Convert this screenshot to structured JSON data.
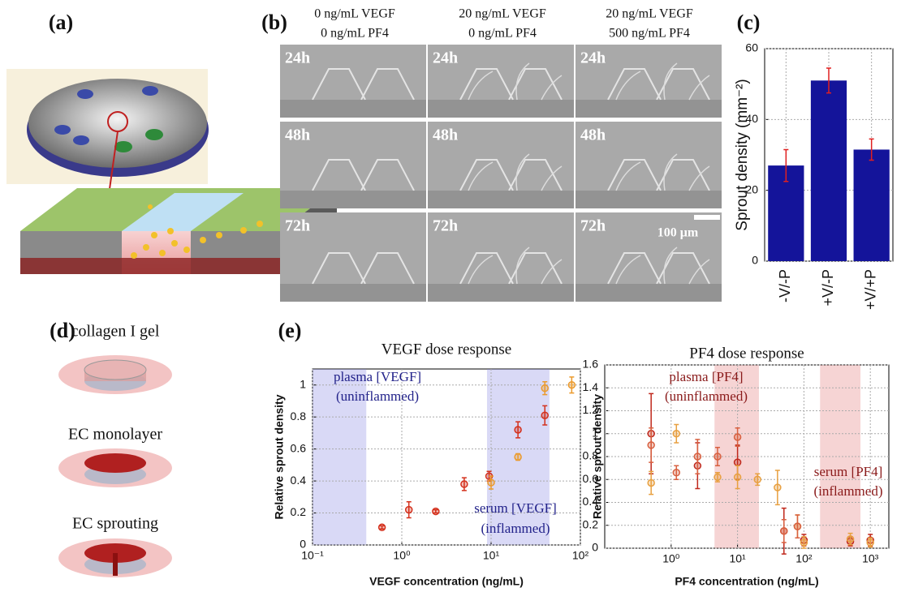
{
  "panels": {
    "a": "(a)",
    "b": "(b)",
    "c": "(c)",
    "d": "(d)",
    "e": "(e)"
  },
  "micrographs": {
    "columns": [
      {
        "vegf": "0 ng/mL VEGF",
        "pf4": "0 ng/mL PF4"
      },
      {
        "vegf": "20 ng/mL VEGF",
        "pf4": "0 ng/mL PF4"
      },
      {
        "vegf": "20 ng/mL VEGF",
        "pf4": "500 ng/mL PF4"
      }
    ],
    "times": [
      "24h",
      "48h",
      "72h"
    ],
    "scale_bar": "100 μm"
  },
  "diagram": {
    "steps": [
      "collagen I gel",
      "EC monolayer",
      "EC sprouting"
    ]
  },
  "chart_data": [
    {
      "type": "bar",
      "ylabel": "Sprout density (mm⁻²)",
      "categories": [
        "-V/-P",
        "+V/-P",
        "+V/+P"
      ],
      "values": [
        27,
        51,
        31.5
      ],
      "errors": [
        4.5,
        3.5,
        3
      ],
      "color": "#14149a",
      "error_color": "#e02020",
      "ylim": [
        0,
        60
      ],
      "yticks": [
        0,
        20,
        40,
        60
      ],
      "grid": true
    },
    {
      "type": "scatter",
      "title": "VEGF dose response",
      "xlabel": "VEGF concentration (ng/mL)",
      "ylabel": "Relative sprout density",
      "xscale": "log",
      "xlim": [
        0.1,
        100
      ],
      "xticks": [
        {
          "value": 0.1,
          "label": "10⁻¹"
        },
        {
          "value": 1,
          "label": "10⁰"
        },
        {
          "value": 10,
          "label": "10¹"
        },
        {
          "value": 100,
          "label": "10²"
        }
      ],
      "ylim": [
        0,
        1.1
      ],
      "yticks": [
        0,
        0.2,
        0.4,
        0.6,
        0.8,
        1
      ],
      "grid": true,
      "bands": [
        {
          "x": [
            0.1,
            0.4
          ],
          "color": "#8080e0"
        },
        {
          "x": [
            9,
            45
          ],
          "color": "#8080e0"
        }
      ],
      "annotations": [
        "plasma [VEGF]",
        "(uninflammed)",
        "serum [VEGF]",
        "(inflammed)"
      ],
      "annotation_color": "#22228a",
      "series": [
        {
          "color": "#d4301c",
          "x": [
            0.6,
            1.2,
            2.4,
            5,
            9.5,
            20,
            40
          ],
          "values": [
            0.11,
            0.22,
            0.21,
            0.38,
            0.43,
            0.72,
            0.81
          ],
          "errors": [
            0.01,
            0.05,
            0.01,
            0.04,
            0.03,
            0.05,
            0.06
          ]
        },
        {
          "color": "#eb9a2c",
          "x": [
            10,
            20,
            40,
            80
          ],
          "values": [
            0.39,
            0.55,
            0.98,
            1.0
          ],
          "errors": [
            0.04,
            0.02,
            0.04,
            0.05
          ]
        }
      ]
    },
    {
      "type": "scatter",
      "title": "PF4 dose response",
      "xlabel": "PF4 concentration (ng/mL)",
      "ylabel": "Relative sprout density",
      "xscale": "log",
      "xlim": [
        0.1,
        1900
      ],
      "xticks": [
        {
          "value": 1,
          "label": "10⁰"
        },
        {
          "value": 10,
          "label": "10¹"
        },
        {
          "value": 100,
          "label": "10²"
        },
        {
          "value": 1000,
          "label": "10³"
        }
      ],
      "ylim": [
        0,
        1.6
      ],
      "yticks": [
        0,
        0.2,
        0.4,
        0.6,
        0.8,
        1,
        1.2,
        1.4,
        1.6
      ],
      "grid": true,
      "bands": [
        {
          "x": [
            4.5,
            21
          ],
          "color": "#e07070"
        },
        {
          "x": [
            175,
            710
          ],
          "color": "#e07070"
        }
      ],
      "annotations": [
        "plasma [PF4]",
        "(uninflammed)",
        "serum [PF4]",
        "(inflammed)"
      ],
      "annotation_color": "#8a1a1a",
      "series": [
        {
          "color": "#c0281c",
          "x": [
            0.5,
            2.5,
            10,
            50,
            100,
            500,
            1000
          ],
          "values": [
            1.0,
            0.72,
            0.75,
            0.15,
            0.07,
            0.06,
            0.07
          ],
          "errors": [
            0.35,
            0.2,
            0.15,
            0.2,
            0.05,
            0.04,
            0.05
          ]
        },
        {
          "color": "#e8a040",
          "x": [
            0.5,
            1.2,
            5,
            10,
            20,
            40,
            80,
            100,
            500,
            1000
          ],
          "values": [
            0.57,
            1.0,
            0.62,
            0.62,
            0.6,
            0.53,
            0.19,
            0.05,
            0.08,
            0.05
          ],
          "errors": [
            0.1,
            0.08,
            0.04,
            0.1,
            0.05,
            0.15,
            0.1,
            0.05,
            0.05,
            0.04
          ]
        },
        {
          "color": "#d86040",
          "x": [
            0.5,
            1.2,
            2.5,
            5,
            10,
            50,
            80
          ],
          "values": [
            0.9,
            0.66,
            0.8,
            0.8,
            0.97,
            0.15,
            0.19
          ],
          "errors": [
            0.15,
            0.06,
            0.15,
            0.08,
            0.08,
            0.1,
            0.1
          ]
        }
      ]
    }
  ]
}
